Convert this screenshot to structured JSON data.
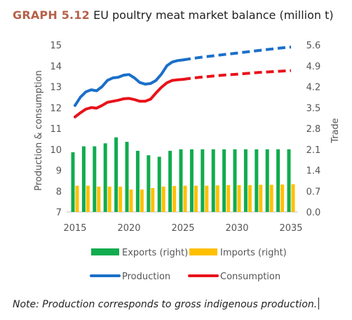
{
  "header": {
    "graph_number": "GRAPH 5.12",
    "title": "EU poultry meat market balance (million t)"
  },
  "note": "Note: Production corresponds to gross indigenous production.",
  "chart_data": {
    "type": "bar",
    "x": [
      2015,
      2016,
      2017,
      2018,
      2019,
      2020,
      2021,
      2022,
      2023,
      2024,
      2025,
      2026,
      2027,
      2028,
      2029,
      2030,
      2031,
      2032,
      2033,
      2034,
      2035
    ],
    "x_ticks": [
      "2015",
      "2020",
      "2025",
      "2030",
      "2035"
    ],
    "left_axis": {
      "label": "Production & consumption",
      "ylim": [
        7,
        15
      ],
      "ticks": [
        "7",
        "8",
        "9",
        "10",
        "11",
        "12",
        "13",
        "14",
        "15"
      ]
    },
    "right_axis": {
      "label": "Trade",
      "ylim": [
        0.0,
        5.6
      ],
      "ticks": [
        "0.0",
        "0.7",
        "1.4",
        "2.1",
        "2.8",
        "3.5",
        "4.2",
        "4.9",
        "5.6"
      ]
    },
    "bar_series": [
      {
        "name": "Exports (right)",
        "color": "#10ac4e",
        "values": [
          2.0,
          2.2,
          2.2,
          2.3,
          2.5,
          2.35,
          2.05,
          1.9,
          1.85,
          2.05,
          2.1,
          2.1,
          2.1,
          2.1,
          2.1,
          2.1,
          2.1,
          2.1,
          2.1,
          2.1,
          2.1
        ]
      },
      {
        "name": "Imports (right)",
        "color": "#ffc000",
        "values": [
          0.88,
          0.88,
          0.85,
          0.85,
          0.85,
          0.75,
          0.75,
          0.8,
          0.85,
          0.87,
          0.88,
          0.88,
          0.88,
          0.89,
          0.9,
          0.9,
          0.9,
          0.91,
          0.91,
          0.92,
          0.93
        ]
      }
    ],
    "line_series": [
      {
        "name": "Production",
        "color": "#1a6fc9",
        "dashed_from": 2025,
        "points": [
          [
            2015,
            12.1
          ],
          [
            2015.5,
            12.5
          ],
          [
            2016,
            12.75
          ],
          [
            2016.5,
            12.85
          ],
          [
            2017,
            12.8
          ],
          [
            2017.5,
            13.0
          ],
          [
            2018,
            13.3
          ],
          [
            2018.5,
            13.42
          ],
          [
            2019,
            13.45
          ],
          [
            2019.5,
            13.55
          ],
          [
            2020,
            13.58
          ],
          [
            2020.5,
            13.42
          ],
          [
            2021,
            13.2
          ],
          [
            2021.5,
            13.12
          ],
          [
            2022,
            13.15
          ],
          [
            2022.5,
            13.3
          ],
          [
            2023,
            13.6
          ],
          [
            2023.5,
            14.0
          ],
          [
            2024,
            14.18
          ],
          [
            2024.5,
            14.25
          ],
          [
            2025,
            14.28
          ],
          [
            2026,
            14.36
          ],
          [
            2027,
            14.43
          ],
          [
            2028,
            14.49
          ],
          [
            2029,
            14.55
          ],
          [
            2030,
            14.61
          ],
          [
            2031,
            14.67
          ],
          [
            2032,
            14.73
          ],
          [
            2033,
            14.79
          ],
          [
            2034,
            14.85
          ],
          [
            2035,
            14.9
          ]
        ]
      },
      {
        "name": "Consumption",
        "color": "#e8121a",
        "dashed_from": 2025,
        "points": [
          [
            2015,
            11.55
          ],
          [
            2015.5,
            11.75
          ],
          [
            2016,
            11.92
          ],
          [
            2016.5,
            12.0
          ],
          [
            2017,
            11.97
          ],
          [
            2017.5,
            12.1
          ],
          [
            2018,
            12.25
          ],
          [
            2018.5,
            12.3
          ],
          [
            2019,
            12.35
          ],
          [
            2019.5,
            12.42
          ],
          [
            2020,
            12.44
          ],
          [
            2020.5,
            12.38
          ],
          [
            2021,
            12.3
          ],
          [
            2021.5,
            12.3
          ],
          [
            2022,
            12.4
          ],
          [
            2022.5,
            12.7
          ],
          [
            2023,
            12.97
          ],
          [
            2023.5,
            13.18
          ],
          [
            2024,
            13.3
          ],
          [
            2024.5,
            13.33
          ],
          [
            2025,
            13.35
          ],
          [
            2026,
            13.42
          ],
          [
            2027,
            13.47
          ],
          [
            2028,
            13.52
          ],
          [
            2029,
            13.56
          ],
          [
            2030,
            13.6
          ],
          [
            2031,
            13.64
          ],
          [
            2032,
            13.68
          ],
          [
            2033,
            13.71
          ],
          [
            2034,
            13.74
          ],
          [
            2035,
            13.77
          ]
        ]
      }
    ],
    "legend_position": "bottom"
  }
}
